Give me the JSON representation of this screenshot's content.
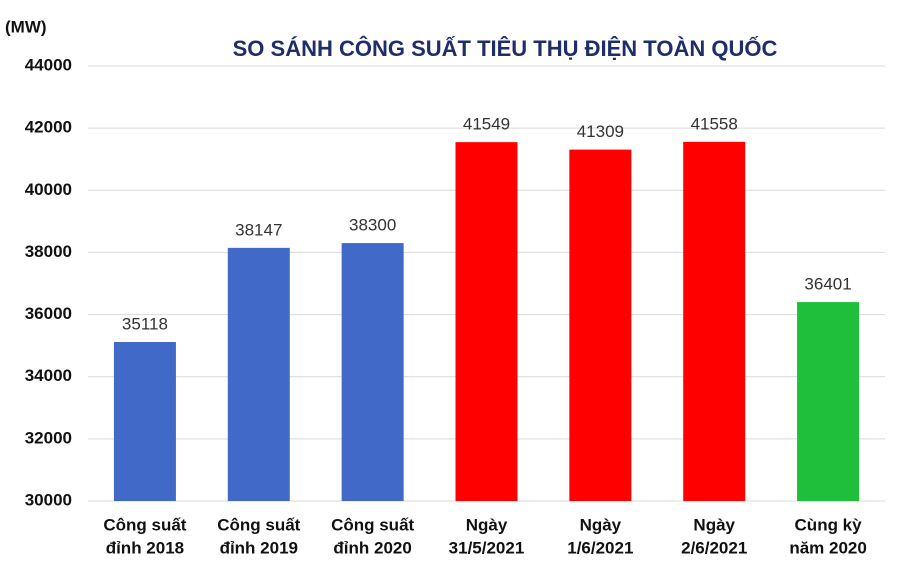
{
  "chart_data": {
    "type": "bar",
    "title": "SO SÁNH CÔNG SUẤT TIÊU THỤ ĐIỆN TOÀN QUỐC",
    "y_label": "(MW)",
    "categories": [
      [
        "Công suất",
        "đỉnh 2018"
      ],
      [
        "Công suất",
        "đỉnh 2019"
      ],
      [
        "Công suất",
        "đỉnh 2020"
      ],
      [
        "Ngày",
        "31/5/2021"
      ],
      [
        "Ngày",
        "1/6/2021"
      ],
      [
        "Ngày",
        "2/6/2021"
      ],
      [
        "Cùng kỳ",
        "năm 2020"
      ]
    ],
    "values": [
      35118,
      38147,
      38300,
      41549,
      41309,
      41558,
      36401
    ],
    "colors": [
      "#4169c8",
      "#4169c8",
      "#4169c8",
      "#ff0000",
      "#ff0000",
      "#ff0000",
      "#1fbf3b"
    ],
    "ylim": [
      30000,
      44000
    ],
    "yticks": [
      30000,
      32000,
      34000,
      36000,
      38000,
      40000,
      42000,
      44000
    ],
    "grid": true
  }
}
